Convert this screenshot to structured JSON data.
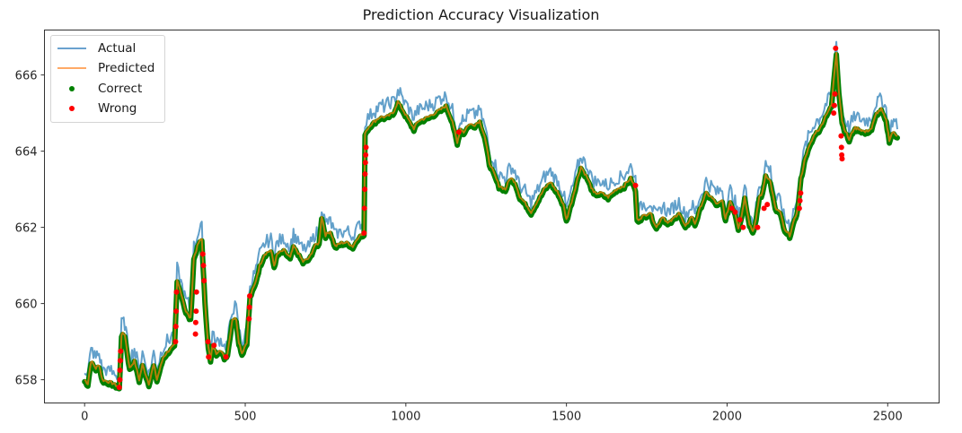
{
  "chart_data": {
    "type": "line",
    "title": "Prediction Accuracy Visualization",
    "xlabel": "",
    "ylabel": "",
    "xlim": [
      -125,
      2660
    ],
    "ylim": [
      657.39,
      667.18
    ],
    "x_ticks": [
      0,
      500,
      1000,
      1500,
      2000,
      2500
    ],
    "y_ticks": [
      658,
      660,
      662,
      664,
      666
    ],
    "grid": false,
    "legend_position": "upper left",
    "legend": [
      {
        "label": "Actual",
        "kind": "line",
        "color": "#1f77b4"
      },
      {
        "label": "Predicted",
        "kind": "line",
        "color": "#ff7f0e"
      },
      {
        "label": "Correct",
        "kind": "scatter",
        "color": "#008000"
      },
      {
        "label": "Wrong",
        "kind": "scatter",
        "color": "#ff0000"
      }
    ],
    "series": [
      {
        "name": "Predicted",
        "color": "#ff7f0e",
        "x": [
          0,
          10,
          20,
          35,
          45,
          55,
          75,
          90,
          108,
          115,
          125,
          140,
          155,
          170,
          180,
          200,
          215,
          225,
          245,
          265,
          280,
          288,
          300,
          315,
          330,
          340,
          355,
          365,
          375,
          385,
          392,
          398,
          410,
          420,
          435,
          445,
          460,
          472,
          480,
          490,
          505,
          515,
          530,
          545,
          560,
          580,
          590,
          600,
          620,
          640,
          650,
          660,
          680,
          700,
          715,
          730,
          738,
          750,
          765,
          780,
          800,
          820,
          835,
          855,
          870,
          873,
          890,
          920,
          940,
          960,
          975,
          990,
          1010,
          1025,
          1040,
          1070,
          1090,
          1110,
          1125,
          1145,
          1160,
          1170,
          1180,
          1195,
          1215,
          1230,
          1245,
          1260,
          1275,
          1290,
          1310,
          1325,
          1340,
          1355,
          1375,
          1390,
          1410,
          1430,
          1450,
          1465,
          1475,
          1490,
          1500,
          1520,
          1535,
          1545,
          1565,
          1585,
          1610,
          1630,
          1655,
          1680,
          1700,
          1715,
          1720,
          1740,
          1760,
          1780,
          1800,
          1815,
          1830,
          1850,
          1870,
          1890,
          1900,
          1920,
          1935,
          1950,
          1970,
          1985,
          1995,
          2010,
          2025,
          2035,
          2045,
          2055,
          2070,
          2080,
          2090,
          2100,
          2110,
          2120,
          2135,
          2150,
          2165,
          2180,
          2195,
          2210,
          2220,
          2230,
          2245,
          2260,
          2275,
          2290,
          2310,
          2325,
          2340,
          2348,
          2358,
          2365,
          2380,
          2395,
          2410,
          2430,
          2450,
          2465,
          2480,
          2495,
          2505,
          2515,
          2530
        ],
        "y": [
          658.0,
          657.9,
          658.5,
          658.3,
          658.4,
          658.0,
          657.95,
          657.9,
          657.8,
          659.2,
          659.2,
          658.3,
          658.5,
          658.0,
          658.4,
          657.9,
          658.4,
          658.0,
          658.6,
          658.8,
          658.9,
          660.6,
          660.3,
          659.8,
          659.6,
          661.2,
          661.6,
          661.7,
          660.0,
          658.9,
          658.5,
          658.9,
          658.7,
          658.8,
          658.6,
          658.7,
          659.6,
          659.6,
          659.0,
          658.7,
          659.0,
          660.2,
          660.5,
          661.0,
          661.3,
          661.4,
          661.0,
          661.3,
          661.4,
          661.2,
          661.5,
          661.4,
          661.1,
          661.2,
          661.5,
          661.6,
          662.3,
          661.8,
          661.9,
          661.5,
          661.6,
          661.6,
          661.5,
          661.8,
          661.8,
          664.5,
          664.7,
          664.9,
          664.9,
          665.0,
          665.3,
          665.1,
          664.8,
          664.6,
          664.8,
          664.9,
          665.0,
          665.1,
          665.2,
          664.8,
          664.2,
          664.6,
          664.5,
          664.7,
          664.7,
          664.8,
          664.4,
          663.7,
          663.4,
          663.1,
          663.0,
          663.3,
          663.2,
          662.8,
          662.6,
          662.4,
          662.7,
          663.0,
          663.2,
          663.0,
          662.9,
          662.6,
          662.2,
          662.8,
          663.3,
          663.6,
          663.3,
          662.9,
          662.9,
          662.8,
          663.0,
          663.1,
          663.3,
          663.0,
          662.2,
          662.3,
          662.4,
          662.0,
          662.3,
          662.1,
          662.2,
          662.4,
          662.0,
          662.3,
          662.1,
          662.6,
          662.9,
          662.8,
          662.6,
          662.7,
          662.2,
          662.7,
          662.4,
          662.0,
          662.3,
          662.8,
          662.1,
          661.9,
          662.2,
          662.8,
          662.9,
          663.4,
          663.2,
          662.5,
          662.4,
          661.9,
          661.8,
          662.2,
          662.5,
          663.3,
          663.9,
          664.2,
          664.5,
          664.6,
          665.0,
          665.2,
          666.6,
          665.6,
          664.8,
          664.6,
          664.3,
          664.6,
          664.6,
          664.5,
          664.6,
          665.0,
          665.1,
          664.8,
          664.3,
          664.5,
          664.4
        ]
      },
      {
        "name": "Actual",
        "color": "#1f77b4",
        "note": "tracks Predicted, offset ~+0.2..+0.4 with high-frequency noise"
      }
    ],
    "wrong_points": [
      {
        "x": 108,
        "y": 657.8
      },
      {
        "x": 110,
        "y": 658.0
      },
      {
        "x": 110,
        "y": 658.25
      },
      {
        "x": 111,
        "y": 658.5
      },
      {
        "x": 112,
        "y": 658.75
      },
      {
        "x": 283,
        "y": 659.0
      },
      {
        "x": 284,
        "y": 659.4
      },
      {
        "x": 285,
        "y": 659.8
      },
      {
        "x": 286,
        "y": 660.3
      },
      {
        "x": 345,
        "y": 659.2
      },
      {
        "x": 346,
        "y": 659.5
      },
      {
        "x": 347,
        "y": 659.8
      },
      {
        "x": 348,
        "y": 660.3
      },
      {
        "x": 368,
        "y": 661.3
      },
      {
        "x": 370,
        "y": 661.0
      },
      {
        "x": 372,
        "y": 660.6
      },
      {
        "x": 384,
        "y": 659.0
      },
      {
        "x": 386,
        "y": 658.6
      },
      {
        "x": 403,
        "y": 658.9
      },
      {
        "x": 440,
        "y": 658.6
      },
      {
        "x": 512,
        "y": 659.6
      },
      {
        "x": 513,
        "y": 659.9
      },
      {
        "x": 514,
        "y": 660.2
      },
      {
        "x": 870,
        "y": 661.85
      },
      {
        "x": 871,
        "y": 662.5
      },
      {
        "x": 872,
        "y": 663.0
      },
      {
        "x": 873,
        "y": 663.4
      },
      {
        "x": 874,
        "y": 663.7
      },
      {
        "x": 875,
        "y": 663.9
      },
      {
        "x": 876,
        "y": 664.1
      },
      {
        "x": 1165,
        "y": 664.5
      },
      {
        "x": 1715,
        "y": 663.1
      },
      {
        "x": 2015,
        "y": 662.5
      },
      {
        "x": 2025,
        "y": 662.4
      },
      {
        "x": 2040,
        "y": 662.2
      },
      {
        "x": 2050,
        "y": 662.0
      },
      {
        "x": 2095,
        "y": 662.0
      },
      {
        "x": 2115,
        "y": 662.5
      },
      {
        "x": 2125,
        "y": 662.6
      },
      {
        "x": 2225,
        "y": 662.5
      },
      {
        "x": 2227,
        "y": 662.7
      },
      {
        "x": 2229,
        "y": 662.9
      },
      {
        "x": 2338,
        "y": 666.7
      },
      {
        "x": 2336,
        "y": 665.5
      },
      {
        "x": 2334,
        "y": 665.2
      },
      {
        "x": 2332,
        "y": 665.0
      },
      {
        "x": 2355,
        "y": 664.4
      },
      {
        "x": 2356,
        "y": 664.1
      },
      {
        "x": 2357,
        "y": 663.9
      },
      {
        "x": 2358,
        "y": 663.8
      }
    ]
  }
}
